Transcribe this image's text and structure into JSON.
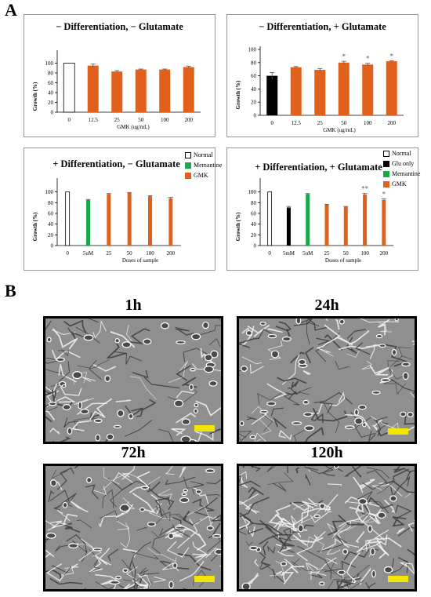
{
  "figure": {
    "label_a": "A",
    "label_b": "B"
  },
  "colors": {
    "normal": "#ffffff",
    "glu_only": "#000000",
    "memantine": "#1aa84c",
    "gmk": "#e0601c",
    "scale_bar": "#f2e600"
  },
  "legend": {
    "left": [
      {
        "label": "Normal",
        "color": "#ffffff"
      },
      {
        "label": "Memantine",
        "color": "#1aa84c"
      },
      {
        "label": "GMK",
        "color": "#e0601c"
      }
    ],
    "right": [
      {
        "label": "Normal",
        "color": "#ffffff"
      },
      {
        "label": "Glu only",
        "color": "#000000"
      },
      {
        "label": "Memantine",
        "color": "#1aa84c"
      },
      {
        "label": "GMK",
        "color": "#e0601c"
      }
    ]
  },
  "chart_data": [
    {
      "type": "bar",
      "title": "− Differentiation, − Glutamate",
      "xlabel": "GMK (ug/mL)",
      "ylabel": "Growth (%)",
      "ylim": [
        0,
        120
      ],
      "yticks": [
        0,
        20,
        40,
        60,
        80,
        100
      ],
      "categories": [
        "0",
        "12.5",
        "25",
        "50",
        "100",
        "200"
      ],
      "values": [
        100,
        95,
        83,
        87,
        87,
        92
      ],
      "errors": [
        0,
        3,
        2,
        1,
        1,
        2
      ],
      "significance": [
        "",
        "",
        "",
        "",
        "",
        ""
      ],
      "colors": [
        "#ffffff",
        "#e0601c",
        "#e0601c",
        "#e0601c",
        "#e0601c",
        "#e0601c"
      ],
      "grid": false
    },
    {
      "type": "bar",
      "title": "− Differentiation, + Glutamate",
      "xlabel": "GMK (ug/mL)",
      "ylabel": "Growth (%)",
      "ylim": [
        0,
        100
      ],
      "yticks": [
        0,
        20,
        40,
        60,
        80,
        100
      ],
      "categories": [
        "0",
        "12.5",
        "25",
        "50",
        "100",
        "200"
      ],
      "values": [
        60,
        73,
        69,
        80,
        77,
        82
      ],
      "errors": [
        5,
        1,
        2,
        2,
        2,
        1
      ],
      "significance": [
        "",
        "",
        "",
        "*",
        "*",
        "*"
      ],
      "colors": [
        "#000000",
        "#e0601c",
        "#e0601c",
        "#e0601c",
        "#e0601c",
        "#e0601c"
      ],
      "grid": false
    },
    {
      "type": "bar",
      "title": "+ Differentiation, − Glutamate",
      "xlabel": "Doses of sample",
      "ylabel": "Growth (%)",
      "ylim": [
        0,
        120
      ],
      "yticks": [
        0,
        20,
        40,
        60,
        80,
        100
      ],
      "categories": [
        "0",
        "5uM",
        "25",
        "50",
        "100",
        "200"
      ],
      "values": [
        100,
        85,
        96,
        98,
        92,
        88
      ],
      "errors": [
        0,
        1,
        1,
        1,
        1,
        2
      ],
      "significance": [
        "",
        "",
        "",
        "",
        "",
        ""
      ],
      "colors": [
        "#ffffff",
        "#1aa84c",
        "#e0601c",
        "#e0601c",
        "#e0601c",
        "#e0601c"
      ],
      "legend": "right",
      "grid": false
    },
    {
      "type": "bar",
      "title": "+ Differentiation, + Glutamate",
      "xlabel": "Doses of sample",
      "ylabel": "Growth (%)",
      "ylim": [
        0,
        120
      ],
      "yticks": [
        0,
        20,
        40,
        60,
        80,
        100
      ],
      "categories": [
        "0",
        "5mM",
        "5uM",
        "25",
        "50",
        "100",
        "200"
      ],
      "values": [
        100,
        71,
        96,
        76,
        72,
        95,
        85
      ],
      "errors": [
        0,
        2,
        1,
        1,
        1,
        2,
        2
      ],
      "significance": [
        "",
        "",
        "",
        "",
        "",
        "**",
        "*"
      ],
      "colors": [
        "#ffffff",
        "#000000",
        "#1aa84c",
        "#e0601c",
        "#e0601c",
        "#e0601c",
        "#e0601c"
      ],
      "legend": "right",
      "grid": false
    }
  ],
  "micrographs": [
    {
      "label": "1h",
      "density": 0.35
    },
    {
      "label": "24h",
      "density": 0.5
    },
    {
      "label": "72h",
      "density": 0.8
    },
    {
      "label": "120h",
      "density": 1.0
    }
  ]
}
